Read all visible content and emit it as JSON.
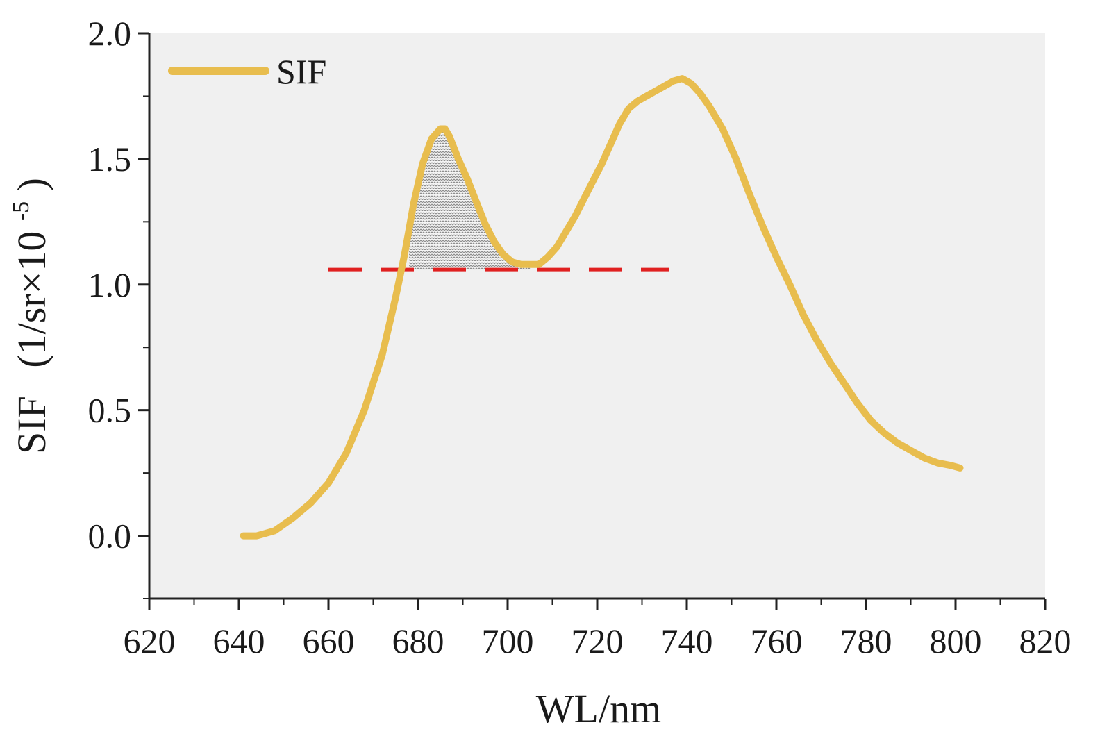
{
  "chart_data": {
    "type": "line",
    "title": "",
    "xlabel": "WL/nm",
    "ylabel": {
      "main": "SIF",
      "unit_prefix": "(1/sr×10",
      "unit_exponent": "-5",
      "unit_suffix": ")"
    },
    "xlim": [
      620,
      820
    ],
    "ylim": [
      -0.25,
      2.0
    ],
    "x_ticks": [
      620,
      640,
      660,
      680,
      700,
      720,
      740,
      760,
      780,
      800,
      820
    ],
    "x_tick_labels": [
      "620",
      "640",
      "660",
      "680",
      "700",
      "720",
      "740",
      "760",
      "780",
      "800",
      "820"
    ],
    "y_ticks": [
      0.0,
      0.5,
      1.0,
      1.5,
      2.0
    ],
    "y_tick_labels": [
      "0.0",
      "0.5",
      "1.0",
      "1.5",
      "2.0"
    ],
    "legend": {
      "position": "top-left",
      "entries": [
        "SIF"
      ]
    },
    "series": [
      {
        "name": "SIF",
        "color": "#E8BD4E",
        "x": [
          641,
          644,
          648,
          652,
          656,
          660,
          664,
          668,
          672,
          675,
          677,
          679,
          681,
          683,
          685,
          686,
          687,
          689,
          691,
          693,
          695,
          697,
          699,
          701,
          703,
          705,
          707,
          709,
          711,
          713,
          715,
          717,
          719,
          721,
          723,
          725,
          727,
          729,
          731,
          733,
          735,
          737,
          739,
          741,
          743,
          745,
          748,
          751,
          754,
          757,
          760,
          763,
          766,
          769,
          772,
          775,
          778,
          781,
          784,
          787,
          790,
          793,
          796,
          799,
          801
        ],
        "y": [
          0.0,
          0.0,
          0.02,
          0.07,
          0.13,
          0.21,
          0.33,
          0.5,
          0.72,
          0.95,
          1.12,
          1.32,
          1.48,
          1.58,
          1.62,
          1.62,
          1.59,
          1.5,
          1.42,
          1.33,
          1.24,
          1.17,
          1.12,
          1.09,
          1.08,
          1.08,
          1.08,
          1.11,
          1.15,
          1.21,
          1.27,
          1.34,
          1.41,
          1.48,
          1.56,
          1.64,
          1.7,
          1.73,
          1.75,
          1.77,
          1.79,
          1.81,
          1.82,
          1.8,
          1.76,
          1.71,
          1.62,
          1.5,
          1.36,
          1.23,
          1.11,
          1.0,
          0.88,
          0.78,
          0.69,
          0.61,
          0.53,
          0.46,
          0.41,
          0.37,
          0.34,
          0.31,
          0.29,
          0.28,
          0.27
        ]
      }
    ],
    "reference_line": {
      "y": 1.06,
      "x_start": 660,
      "x_end": 736,
      "style": "dashed",
      "color": "#E02020"
    },
    "shaded_region": {
      "x_start": 678,
      "x_end": 705,
      "baseline": 1.06,
      "pattern": "zigzag",
      "color": "#8A8A8A"
    },
    "plot_background": "#F0F0F0",
    "grid": false
  }
}
